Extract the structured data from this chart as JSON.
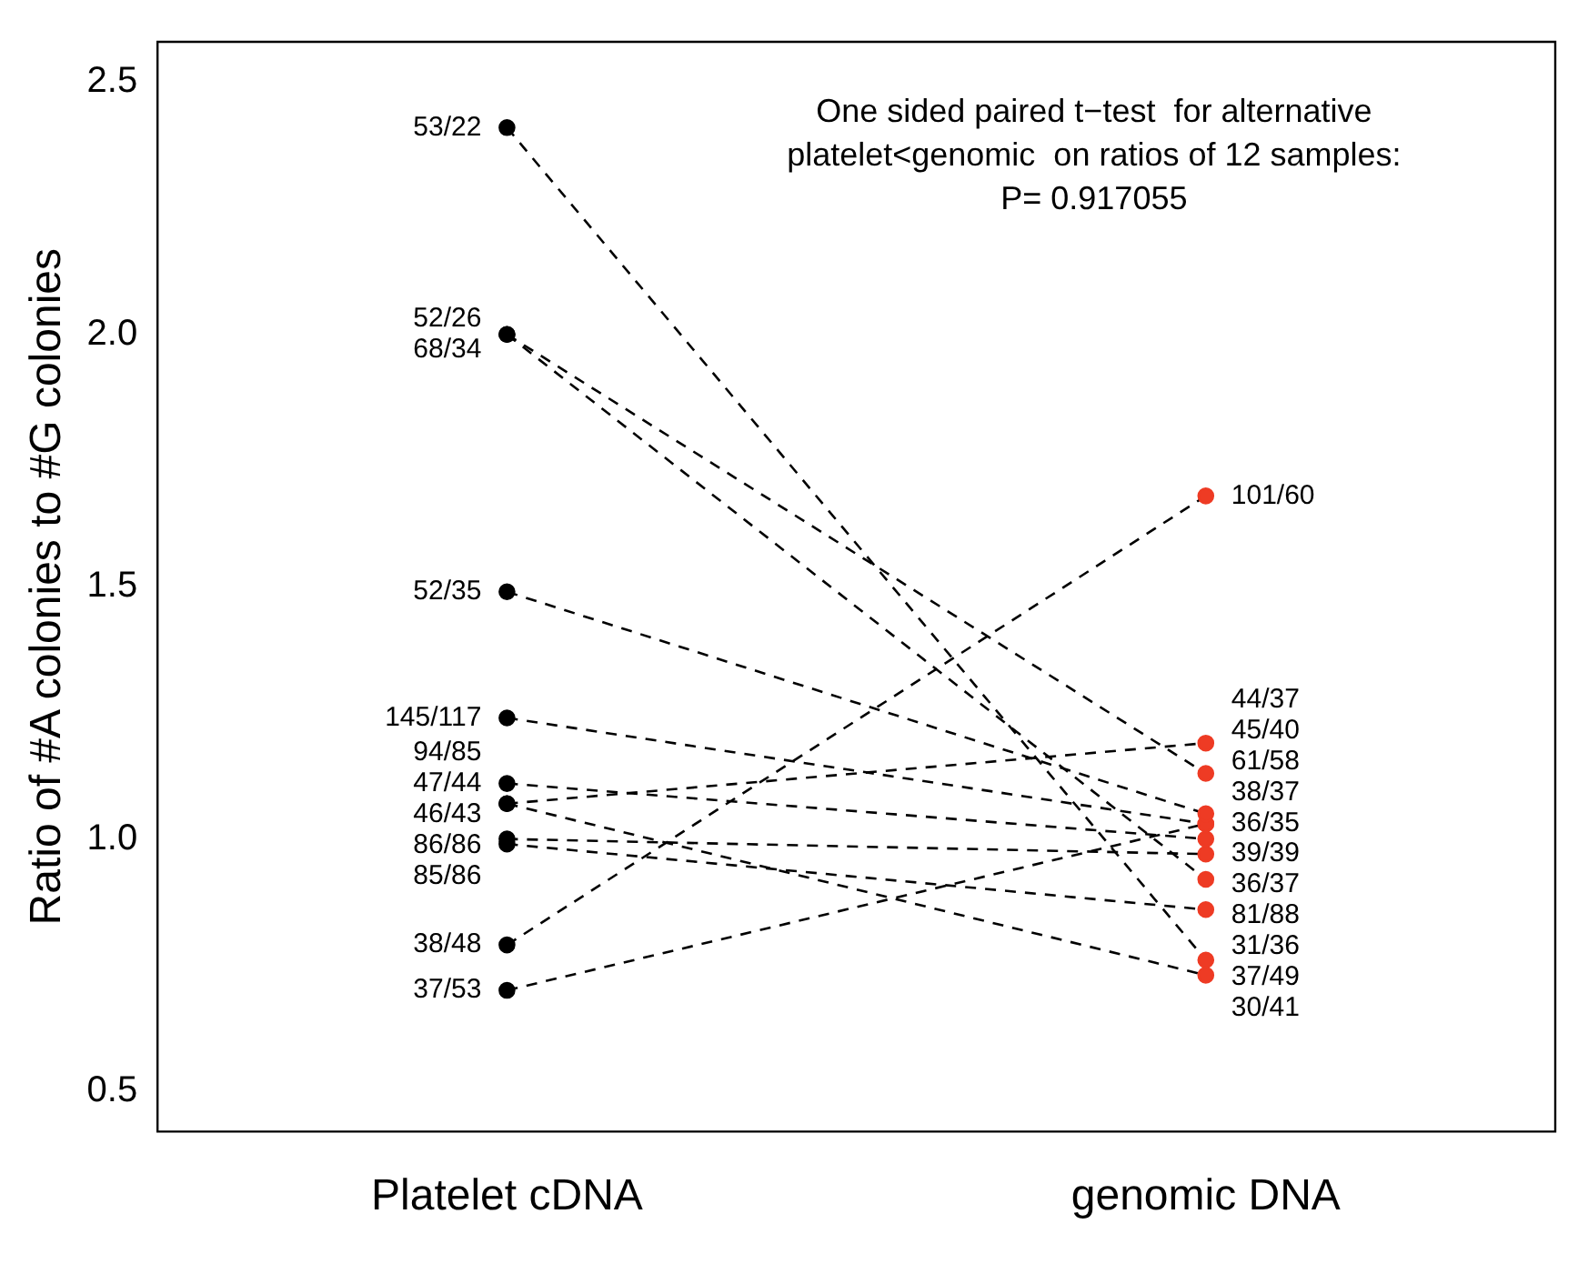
{
  "chart_data": {
    "type": "line",
    "categories": [
      "Platelet cDNA",
      "genomic DNA"
    ],
    "ylabel": "Ratio of #A colonies to #G colonies",
    "ylim": [
      0.42,
      2.58
    ],
    "yticks": [
      0.5,
      {
        "value": 1,
        "label": "1.0"
      },
      1.5,
      {
        "value": 2,
        "label": "2.0"
      },
      2.5
    ],
    "grid": false,
    "legend": false,
    "marker": "circle",
    "line_style": "dashed",
    "annotations": [
      "One sided paired t−test  for alternative\nplatelet<genomic  on ratios of 12 samples:\nP= 0.917055"
    ],
    "series": [
      {
        "color": "#000000",
        "colors": [
          "#000000",
          "#ee3b24"
        ],
        "values": [
          2.41,
          0.76
        ],
        "value_labels": [
          "53/22",
          "37/49"
        ]
      },
      {
        "color": "#000000",
        "colors": [
          "#000000",
          "#ee3b24"
        ],
        "values": [
          2.0,
          1.13
        ],
        "value_labels": [
          "52/26",
          "45/40"
        ]
      },
      {
        "color": "#000000",
        "colors": [
          "#000000",
          "#ee3b24"
        ],
        "values": [
          2.0,
          0.92
        ],
        "value_labels": [
          "68/34",
          "81/88"
        ]
      },
      {
        "color": "#000000",
        "colors": [
          "#000000",
          "#ee3b24"
        ],
        "values": [
          1.49,
          1.05
        ],
        "value_labels": [
          "52/35",
          "61/58"
        ]
      },
      {
        "color": "#000000",
        "colors": [
          "#000000",
          "#ee3b24"
        ],
        "values": [
          1.24,
          1.03
        ],
        "value_labels": [
          "145/117",
          "38/37"
        ]
      },
      {
        "color": "#000000",
        "colors": [
          "#000000",
          "#ee3b24"
        ],
        "values": [
          1.11,
          1.0
        ],
        "value_labels": [
          "94/85",
          "39/39"
        ]
      },
      {
        "color": "#000000",
        "colors": [
          "#000000",
          "#ee3b24"
        ],
        "values": [
          1.07,
          1.19
        ],
        "value_labels": [
          "47/44",
          "44/37"
        ]
      },
      {
        "color": "#000000",
        "colors": [
          "#000000",
          "#ee3b24"
        ],
        "values": [
          1.07,
          0.73
        ],
        "value_labels": [
          "46/43",
          "30/41"
        ]
      },
      {
        "color": "#000000",
        "colors": [
          "#000000",
          "#ee3b24"
        ],
        "values": [
          1.0,
          0.97
        ],
        "value_labels": [
          "86/86",
          "36/37"
        ]
      },
      {
        "color": "#000000",
        "colors": [
          "#000000",
          "#ee3b24"
        ],
        "values": [
          0.99,
          0.86
        ],
        "value_labels": [
          "85/86",
          "31/36"
        ]
      },
      {
        "color": "#000000",
        "colors": [
          "#000000",
          "#ee3b24"
        ],
        "values": [
          0.79,
          1.68
        ],
        "value_labels": [
          "38/48",
          "101/60"
        ]
      },
      {
        "color": "#000000",
        "colors": [
          "#000000",
          "#ee3b24"
        ],
        "values": [
          0.7,
          1.03
        ],
        "value_labels": [
          "37/53",
          "36/35"
        ]
      }
    ]
  }
}
